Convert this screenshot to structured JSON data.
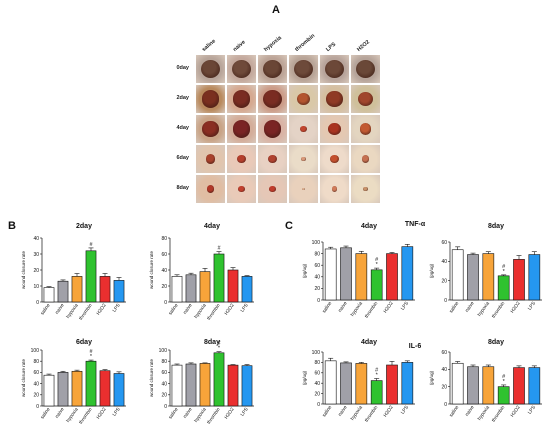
{
  "panel_letters": {
    "a": "A",
    "b": "B",
    "c": "C"
  },
  "section_titles": {
    "tnf": "TNF-α",
    "il6": "IL-6"
  },
  "photo_grid": {
    "columns": [
      "saline",
      "naive",
      "hypoxia",
      "thrombin",
      "LPS",
      "H2O2"
    ],
    "rows": [
      "0day",
      "2day",
      "4day",
      "6day",
      "8day"
    ],
    "tile_colors": [
      [
        "#b8a59a",
        "#c4a99d",
        "#bca497",
        "#b8a497",
        "#b8a49b",
        "#b6a49a"
      ],
      [
        "#b98a5e",
        "#d6a991",
        "#cc9c88",
        "#d9c8a8",
        "#d5bfa0",
        "#cfc09b"
      ],
      [
        "#c9a487",
        "#d4ad9a",
        "#d9b3a5",
        "#e4d3c6",
        "#e4c8b2",
        "#e3d5c0"
      ],
      [
        "#e1c5ae",
        "#e9c9b8",
        "#e8d1c3",
        "#eadcc8",
        "#eedbca",
        "#ead8c1"
      ],
      [
        "#e0bda3",
        "#e9cab8",
        "#e5c7b6",
        "#e9d1bc",
        "#efdbc8",
        "#ebdcc3"
      ]
    ],
    "wound_colors": [
      [
        "#6a4636",
        "#6f4a3a",
        "#6a4636",
        "#6d4a3a",
        "#6c4838",
        "#6a4838"
      ],
      [
        "#7a2f1f",
        "#7a2c22",
        "#7a2c22",
        "#b3552f",
        "#8f3a24",
        "#a0462c"
      ],
      [
        "#8a2e22",
        "#7a2424",
        "#7a2424",
        "#c2452f",
        "#a9331f",
        "#c25a32"
      ],
      [
        "#a8422c",
        "#b53e2c",
        "#b04230",
        "#d99a7a",
        "#c4502e",
        "#c57050"
      ],
      [
        "#b03828",
        "#c2402e",
        "#c03c2c",
        "#e0b08f",
        "#d07b5a",
        "#c8926a"
      ]
    ],
    "wound_sizes": [
      [
        0.62,
        0.62,
        0.62,
        0.62,
        0.62,
        0.62
      ],
      [
        0.58,
        0.58,
        0.6,
        0.42,
        0.52,
        0.48
      ],
      [
        0.52,
        0.58,
        0.58,
        0.22,
        0.4,
        0.38
      ],
      [
        0.32,
        0.3,
        0.3,
        0.16,
        0.28,
        0.24
      ],
      [
        0.24,
        0.2,
        0.2,
        0.1,
        0.18,
        0.16
      ]
    ]
  },
  "chart_data": [
    {
      "type": "bar",
      "id": "wound-2day",
      "title": "2day",
      "ylabel": "wound closure rate",
      "categories": [
        "saline",
        "naive",
        "hypoxia",
        "thrombin",
        "H2O2",
        "LPS"
      ],
      "values": [
        9,
        13,
        16,
        32,
        16,
        13.5
      ],
      "errors": [
        0.6,
        0.8,
        1.8,
        1.8,
        1.8,
        1.8
      ],
      "colors": [
        "#ffffff",
        "#a0a0a8",
        "#f7a43a",
        "#2fc22f",
        "#ea2f2f",
        "#2597f0"
      ],
      "ylim": [
        0,
        40
      ],
      "yticks": [
        0,
        10,
        20,
        30,
        40
      ],
      "annotations": [
        {
          "index": 3,
          "text": "#"
        }
      ]
    },
    {
      "type": "bar",
      "id": "wound-4day",
      "title": "4day",
      "ylabel": "wound closure rate",
      "categories": [
        "saline",
        "naive",
        "hypoxia",
        "thrombin",
        "H2O2",
        "LPS"
      ],
      "values": [
        32,
        34,
        38,
        60,
        40,
        32
      ],
      "errors": [
        2,
        2,
        4,
        3,
        3,
        1
      ],
      "colors": [
        "#ffffff",
        "#a0a0a8",
        "#f7a43a",
        "#2fc22f",
        "#ea2f2f",
        "#2597f0"
      ],
      "ylim": [
        0,
        80
      ],
      "yticks": [
        0,
        20,
        40,
        60,
        80
      ],
      "annotations": [
        {
          "index": 3,
          "text": "#"
        }
      ]
    },
    {
      "type": "bar",
      "id": "wound-6day",
      "title": "6day",
      "ylabel": "wound closure rate",
      "categories": [
        "saline",
        "naive",
        "hypoxia",
        "thrombin",
        "H2O2",
        "LPS"
      ],
      "values": [
        55,
        60,
        62,
        80,
        63,
        58
      ],
      "errors": [
        2,
        2,
        2,
        2,
        2,
        3
      ],
      "colors": [
        "#ffffff",
        "#a0a0a8",
        "#f7a43a",
        "#2fc22f",
        "#ea2f2f",
        "#2597f0"
      ],
      "ylim": [
        0,
        100
      ],
      "yticks": [
        0,
        20,
        40,
        60,
        80,
        100
      ],
      "annotations": [
        {
          "index": 3,
          "text": "#"
        },
        {
          "index": 3,
          "text": "*"
        }
      ]
    },
    {
      "type": "bar",
      "id": "wound-8day",
      "title": "8day",
      "ylabel": "wound closure rate",
      "categories": [
        "saline",
        "naive",
        "hypoxia",
        "thrombin",
        "H2O2",
        "LPS"
      ],
      "values": [
        73,
        75,
        76,
        95,
        73,
        72
      ],
      "errors": [
        2,
        2,
        1,
        2,
        1,
        2
      ],
      "colors": [
        "#ffffff",
        "#a0a0a8",
        "#f7a43a",
        "#2fc22f",
        "#ea2f2f",
        "#2597f0"
      ],
      "ylim": [
        0,
        100
      ],
      "yticks": [
        0,
        20,
        40,
        60,
        80,
        100
      ],
      "annotations": [
        {
          "index": 3,
          "text": "#"
        },
        {
          "index": 3,
          "text": "*"
        }
      ]
    },
    {
      "type": "bar",
      "id": "tnf-4day",
      "title": "4day",
      "ylabel": "(pg/ug)",
      "categories": [
        "saline",
        "naive",
        "hypoxia",
        "thrombin",
        "H2O2",
        "LPS"
      ],
      "values": [
        88,
        90,
        80,
        52,
        80,
        92
      ],
      "errors": [
        3,
        3,
        4,
        3,
        2,
        4
      ],
      "colors": [
        "#ffffff",
        "#a0a0a8",
        "#f7a43a",
        "#2fc22f",
        "#ea2f2f",
        "#2597f0"
      ],
      "ylim": [
        0,
        100
      ],
      "yticks": [
        0,
        20,
        40,
        60,
        80,
        100
      ],
      "annotations": [
        {
          "index": 3,
          "text": "#"
        },
        {
          "index": 3,
          "text": "*"
        }
      ]
    },
    {
      "type": "bar",
      "id": "tnf-8day",
      "title": "8day",
      "ylabel": "(pg/ug)",
      "categories": [
        "saline",
        "naive",
        "hypoxia",
        "thrombin",
        "H2O2",
        "LPS"
      ],
      "values": [
        52,
        47,
        48,
        25,
        42,
        47
      ],
      "errors": [
        3,
        1.5,
        2,
        1,
        4,
        3
      ],
      "colors": [
        "#ffffff",
        "#a0a0a8",
        "#f7a43a",
        "#2fc22f",
        "#ea2f2f",
        "#2597f0"
      ],
      "ylim": [
        0,
        60
      ],
      "yticks": [
        0,
        20,
        40,
        60
      ],
      "annotations": [
        {
          "index": 3,
          "text": "#"
        },
        {
          "index": 3,
          "text": "*"
        }
      ]
    },
    {
      "type": "bar",
      "id": "il6-4day",
      "title": "4day",
      "ylabel": "(pg/ug)",
      "categories": [
        "saline",
        "naive",
        "hypoxia",
        "thrombin",
        "H2O2",
        "LPS"
      ],
      "values": [
        83,
        79,
        78,
        45,
        75,
        80
      ],
      "errors": [
        5,
        2,
        2,
        4,
        7,
        3
      ],
      "colors": [
        "#ffffff",
        "#a0a0a8",
        "#f7a43a",
        "#2fc22f",
        "#ea2f2f",
        "#2597f0"
      ],
      "ylim": [
        0,
        100
      ],
      "yticks": [
        0,
        20,
        40,
        60,
        80,
        100
      ],
      "annotations": [
        {
          "index": 3,
          "text": "#"
        },
        {
          "index": 3,
          "text": "*"
        }
      ]
    },
    {
      "type": "bar",
      "id": "il6-8day",
      "title": "8day",
      "ylabel": "(pg/ug)",
      "categories": [
        "saline",
        "naive",
        "hypoxia",
        "thrombin",
        "H2O2",
        "LPS"
      ],
      "values": [
        47,
        43,
        43,
        20,
        42,
        42
      ],
      "errors": [
        2,
        2,
        2,
        2,
        2,
        2
      ],
      "colors": [
        "#ffffff",
        "#a0a0a8",
        "#f7a43a",
        "#2fc22f",
        "#ea2f2f",
        "#2597f0"
      ],
      "ylim": [
        0,
        60
      ],
      "yticks": [
        0,
        20,
        40,
        60
      ],
      "annotations": [
        {
          "index": 3,
          "text": "#"
        },
        {
          "index": 3,
          "text": "*"
        }
      ]
    }
  ]
}
